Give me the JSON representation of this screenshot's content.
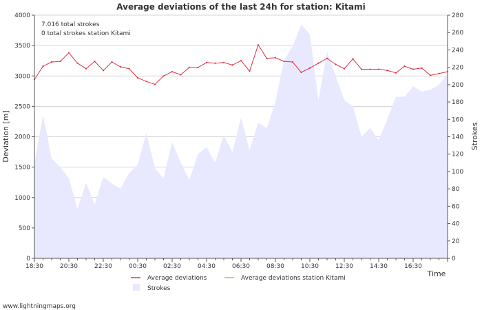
{
  "chart_data": {
    "type": "line+area",
    "title": "Average deviations of the last 24h for station: Kitami",
    "info_lines": [
      "7.016 total strokes",
      "0 total strokes station Kitami"
    ],
    "xlabel": "Time",
    "ylabel_left": "Deviation  [m]",
    "ylabel_right": "Strokes",
    "ylim_left": [
      0,
      4000
    ],
    "ylim_right": [
      0,
      280
    ],
    "yticks_left": [
      0,
      500,
      1000,
      1500,
      2000,
      2500,
      3000,
      3500,
      4000
    ],
    "yticks_right": [
      0,
      20,
      40,
      60,
      80,
      100,
      120,
      140,
      160,
      180,
      200,
      220,
      240,
      260,
      280
    ],
    "x_range_hours": [
      0,
      24
    ],
    "x_ticks": [
      {
        "h": 0,
        "label": "18:30"
      },
      {
        "h": 2,
        "label": "20:30"
      },
      {
        "h": 4,
        "label": "22:30"
      },
      {
        "h": 6,
        "label": "00:30"
      },
      {
        "h": 8,
        "label": "02:30"
      },
      {
        "h": 10,
        "label": "04:30"
      },
      {
        "h": 12,
        "label": "06:30"
      },
      {
        "h": 14,
        "label": "08:30"
      },
      {
        "h": 16,
        "label": "10:30"
      },
      {
        "h": 18,
        "label": "12:30"
      },
      {
        "h": 20,
        "label": "14:30"
      },
      {
        "h": 22,
        "label": "16:30"
      }
    ],
    "series": [
      {
        "name": "Average deviations",
        "color": "#e03040",
        "axis": "left",
        "x_hours": [
          0,
          0.5,
          1,
          1.5,
          2,
          2.5,
          3,
          3.5,
          4,
          4.5,
          5,
          5.5,
          6,
          6.5,
          7,
          7.5,
          8,
          8.5,
          9,
          9.5,
          10,
          10.5,
          11,
          11.5,
          12,
          12.5,
          13,
          13.5,
          14,
          14.5,
          15,
          15.5,
          16,
          16.5,
          17,
          17.5,
          18,
          18.5,
          19,
          19.5,
          20,
          20.5,
          21,
          21.5,
          22,
          22.5,
          23,
          23.5,
          24
        ],
        "values": [
          2940,
          3160,
          3230,
          3240,
          3380,
          3210,
          3120,
          3240,
          3090,
          3230,
          3150,
          3120,
          2970,
          2910,
          2860,
          3000,
          3070,
          3020,
          3140,
          3140,
          3220,
          3210,
          3220,
          3180,
          3250,
          3080,
          3510,
          3290,
          3300,
          3240,
          3230,
          3060,
          3130,
          3210,
          3290,
          3190,
          3120,
          3280,
          3110,
          3110,
          3110,
          3090,
          3050,
          3160,
          3110,
          3130,
          3010,
          3040,
          3070
        ]
      },
      {
        "name": "Average deviations station Kitami",
        "color": "#f0a050",
        "axis": "left",
        "x_hours": [],
        "values": []
      },
      {
        "name": "Strokes",
        "color": "#e8e8ff",
        "axis": "right",
        "x_hours": [
          0,
          0.5,
          1,
          1.5,
          2,
          2.5,
          3,
          3.5,
          4,
          4.5,
          5,
          5.5,
          6,
          6.5,
          7,
          7.5,
          8,
          8.5,
          9,
          9.5,
          10,
          10.5,
          11,
          11.5,
          12,
          12.5,
          13,
          13.5,
          14,
          14.5,
          15,
          15.5,
          16,
          16.5,
          17,
          17.5,
          18,
          18.5,
          19,
          19.5,
          20,
          20.5,
          21,
          21.5,
          22,
          22.5,
          23,
          23.5,
          24
        ],
        "values": [
          110,
          165,
          115,
          105,
          92,
          57,
          87,
          62,
          94,
          86,
          80,
          98,
          108,
          144,
          104,
          92,
          134,
          110,
          90,
          120,
          128,
          110,
          142,
          122,
          162,
          124,
          156,
          150,
          180,
          228,
          244,
          269,
          258,
          182,
          238,
          210,
          182,
          175,
          140,
          150,
          136,
          160,
          186,
          186,
          198,
          192,
          194,
          200,
          212
        ]
      }
    ],
    "legend": [
      {
        "label": "Average deviations",
        "kind": "line",
        "color": "#e03040"
      },
      {
        "label": "Average deviations station Kitami",
        "kind": "line",
        "color": "#f0a050"
      },
      {
        "label": "Strokes",
        "kind": "box",
        "color": "#e8e8ff"
      }
    ]
  },
  "footer": "www.lightningmaps.org"
}
